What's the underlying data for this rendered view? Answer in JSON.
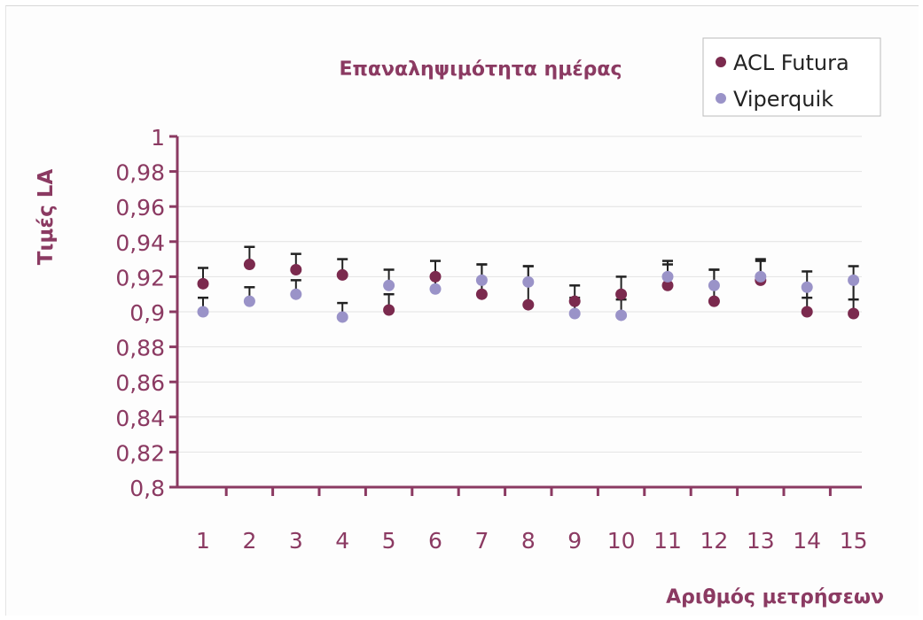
{
  "chart_data": {
    "type": "scatter",
    "title": "Επαναληψιμότητα ημέρας",
    "xlabel": "Αριθμός μετρήσεων",
    "ylabel": "Τιμές LA",
    "categories": [
      "1",
      "2",
      "3",
      "4",
      "5",
      "6",
      "7",
      "8",
      "9",
      "10",
      "11",
      "12",
      "13",
      "14",
      "15"
    ],
    "ylim": [
      0.8,
      1.0
    ],
    "y_ticks": [
      "0,8",
      "0,82",
      "0,84",
      "0,86",
      "0,88",
      "0,9",
      "0,92",
      "0,94",
      "0,96",
      "0,98",
      "1"
    ],
    "y_tick_values": [
      0.8,
      0.82,
      0.84,
      0.86,
      0.88,
      0.9,
      0.92,
      0.94,
      0.96,
      0.98,
      1.0
    ],
    "grid": true,
    "legend_position": "top-right",
    "series": [
      {
        "name": "ACL Futura",
        "color": "#7b2a4e",
        "values": [
          0.916,
          0.927,
          0.924,
          0.921,
          0.901,
          0.92,
          0.91,
          0.904,
          0.906,
          0.91,
          0.915,
          0.906,
          0.918,
          0.9,
          0.899
        ],
        "error_upper": [
          0.925,
          0.937,
          0.933,
          0.93,
          0.91,
          0.929,
          0.927,
          0.926,
          0.915,
          0.92,
          0.929,
          0.924,
          0.929,
          0.923,
          0.926
        ]
      },
      {
        "name": "Viperquik",
        "color": "#9a93c8",
        "values": [
          0.9,
          0.906,
          0.91,
          0.897,
          0.915,
          0.913,
          0.918,
          0.917,
          0.899,
          0.898,
          0.92,
          0.915,
          0.92,
          0.914,
          0.918
        ],
        "error_upper": [
          0.908,
          0.914,
          0.918,
          0.905,
          0.924,
          0.92,
          0.927,
          0.926,
          0.908,
          0.907,
          0.927,
          0.924,
          0.93,
          0.908,
          0.907
        ]
      }
    ],
    "colors": {
      "title": "#8b3a62",
      "axis": "#8b3a62",
      "tick_label": "#8b3a62",
      "grid": "#e2e2e2",
      "error_bar": "#222222"
    }
  }
}
